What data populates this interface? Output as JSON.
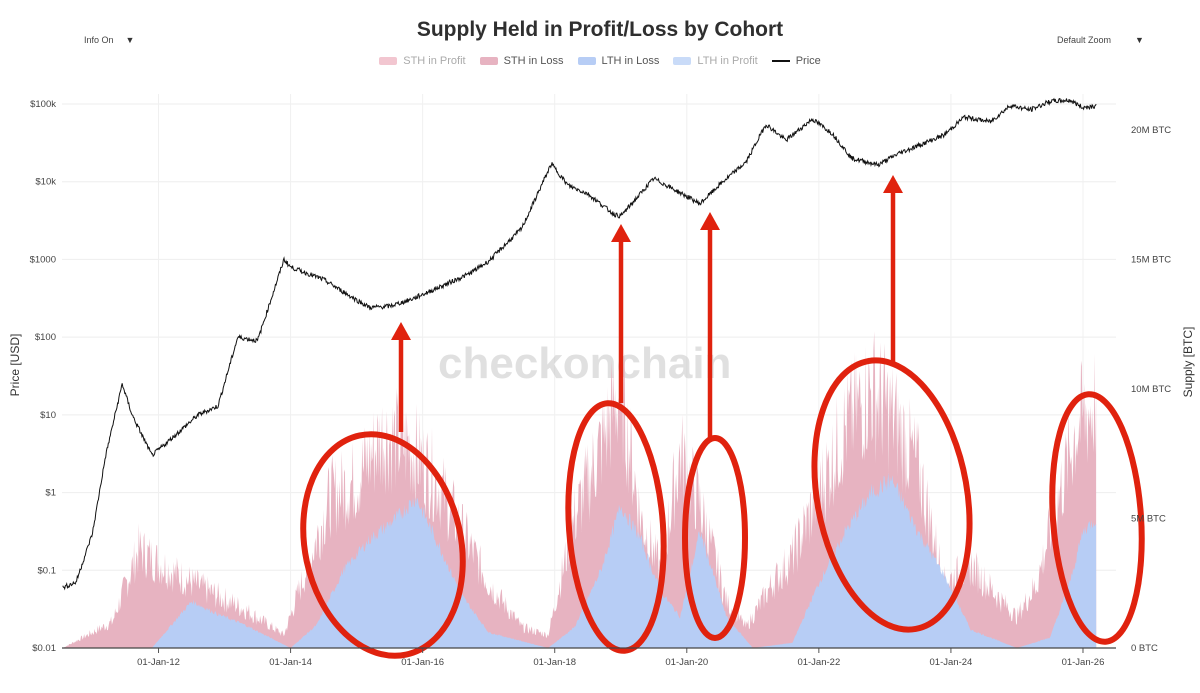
{
  "controls": {
    "info_label": "Info On",
    "zoom_label": "Default Zoom",
    "caret": "▼"
  },
  "watermark": "checkonchain",
  "colors": {
    "sth_profit": "#f2c6d0",
    "sth_loss": "#e7b3c1",
    "lth_loss": "#b7cdf5",
    "lth_profit": "#c9dbf8",
    "price": "#111111",
    "annotation": "#e0220e"
  },
  "chart_data": {
    "type": "area",
    "title": "Supply Held in Profit/Loss by Cohort",
    "ylabel_left": "Price [USD]",
    "ylabel_right": "Supply [BTC]",
    "y_left_scale": "log",
    "y_left_range": [
      0.01,
      100000
    ],
    "y_left_ticks": [
      "$0.01",
      "$0.1",
      "$1",
      "$10",
      "$100",
      "$1000",
      "$10k",
      "$100k"
    ],
    "y_right_range": [
      0,
      21000000
    ],
    "y_right_ticks": [
      "0 BTC",
      "5M BTC",
      "10M BTC",
      "15M BTC",
      "20M BTC"
    ],
    "x_range": [
      "2010-07-15",
      "2026-07-01"
    ],
    "x_ticks": [
      "01-Jan-12",
      "01-Jan-14",
      "01-Jan-16",
      "01-Jan-18",
      "01-Jan-20",
      "01-Jan-22",
      "01-Jan-24",
      "01-Jan-26"
    ],
    "grid": true,
    "legend_position": "top-center",
    "legend": [
      {
        "name": "STH in Profit",
        "color": "#f2c6d0",
        "dimmed": true
      },
      {
        "name": "STH in Loss",
        "color": "#e7b3c1",
        "dimmed": false
      },
      {
        "name": "LTH in Loss",
        "color": "#b7cdf5",
        "dimmed": false
      },
      {
        "name": "LTH in Profit",
        "color": "#c9dbf8",
        "dimmed": true
      },
      {
        "name": "Price",
        "color": "#111111",
        "dimmed": false,
        "line": true
      }
    ],
    "series": [
      {
        "name": "Price",
        "x": [
          2010.55,
          2010.75,
          2011.0,
          2011.2,
          2011.45,
          2011.6,
          2011.9,
          2012.2,
          2012.6,
          2012.9,
          2013.2,
          2013.5,
          2013.9,
          2014.0,
          2014.5,
          2015.0,
          2015.2,
          2015.5,
          2015.8,
          2016.2,
          2016.7,
          2017.0,
          2017.5,
          2017.95,
          2018.2,
          2018.5,
          2018.9,
          2019.0,
          2019.5,
          2019.9,
          2020.2,
          2020.5,
          2020.9,
          2021.2,
          2021.5,
          2021.9,
          2022.2,
          2022.5,
          2022.9,
          2023.2,
          2023.5,
          2023.9,
          2024.2,
          2024.6,
          2024.9,
          2025.2,
          2025.5,
          2025.8,
          2026.0,
          2026.2
        ],
        "values": [
          0.06,
          0.07,
          0.3,
          3,
          25,
          10,
          3,
          5,
          10,
          13,
          100,
          90,
          1000,
          800,
          550,
          300,
          240,
          250,
          300,
          420,
          650,
          950,
          2500,
          17000,
          9000,
          7000,
          3800,
          3600,
          11000,
          7200,
          5200,
          9200,
          18000,
          55000,
          34000,
          64000,
          42000,
          20000,
          16500,
          23000,
          29000,
          40000,
          68000,
          59000,
          96000,
          84000,
          108000,
          112000,
          90000,
          95000
        ]
      },
      {
        "name": "STH in Loss",
        "x": [
          2010.55,
          2011.3,
          2011.7,
          2012.3,
          2012.9,
          2013.3,
          2013.9,
          2014.3,
          2014.6,
          2015.0,
          2015.4,
          2015.8,
          2016.2,
          2016.6,
          2017.0,
          2017.5,
          2017.9,
          2018.3,
          2018.7,
          2019.0,
          2019.3,
          2019.6,
          2019.9,
          2020.2,
          2020.6,
          2020.9,
          2021.3,
          2021.6,
          2022.0,
          2022.4,
          2022.8,
          2023.1,
          2023.5,
          2023.9,
          2024.3,
          2024.7,
          2025.0,
          2025.3,
          2025.6,
          2025.9,
          2026.2
        ],
        "values": [
          0,
          1000000,
          3800000,
          2800000,
          2000000,
          1500000,
          500000,
          3500000,
          5800000,
          6500000,
          8200000,
          7800000,
          6500000,
          4500000,
          2500000,
          800000,
          500000,
          5000000,
          7800000,
          10000000,
          5000000,
          3000000,
          7500000,
          5500000,
          1800000,
          800000,
          2500000,
          3500000,
          6000000,
          8500000,
          10000000,
          9000000,
          7000000,
          2500000,
          3200000,
          2000000,
          1200000,
          2500000,
          5500000,
          8500000,
          9500000
        ]
      },
      {
        "name": "LTH in Loss",
        "x": [
          2010.55,
          2011.3,
          2011.9,
          2012.5,
          2012.9,
          2013.3,
          2014.0,
          2014.4,
          2014.8,
          2015.2,
          2015.6,
          2015.9,
          2016.2,
          2016.6,
          2017.0,
          2017.9,
          2018.3,
          2018.7,
          2019.0,
          2019.3,
          2019.6,
          2019.9,
          2020.2,
          2020.6,
          2021.0,
          2021.6,
          2022.0,
          2022.4,
          2022.8,
          2023.1,
          2023.5,
          2023.9,
          2024.3,
          2025.0,
          2025.5,
          2025.8,
          2026.0,
          2026.2
        ],
        "values": [
          0,
          0,
          0,
          1800000,
          1300000,
          900000,
          0,
          900000,
          3000000,
          4200000,
          5000000,
          5800000,
          4200000,
          2000000,
          600000,
          0,
          800000,
          3000000,
          5500000,
          4200000,
          2200000,
          1200000,
          4500000,
          1200000,
          0,
          200000,
          2500000,
          4500000,
          6000000,
          6500000,
          4500000,
          2800000,
          700000,
          0,
          400000,
          2500000,
          4500000,
          5000000
        ]
      }
    ]
  }
}
